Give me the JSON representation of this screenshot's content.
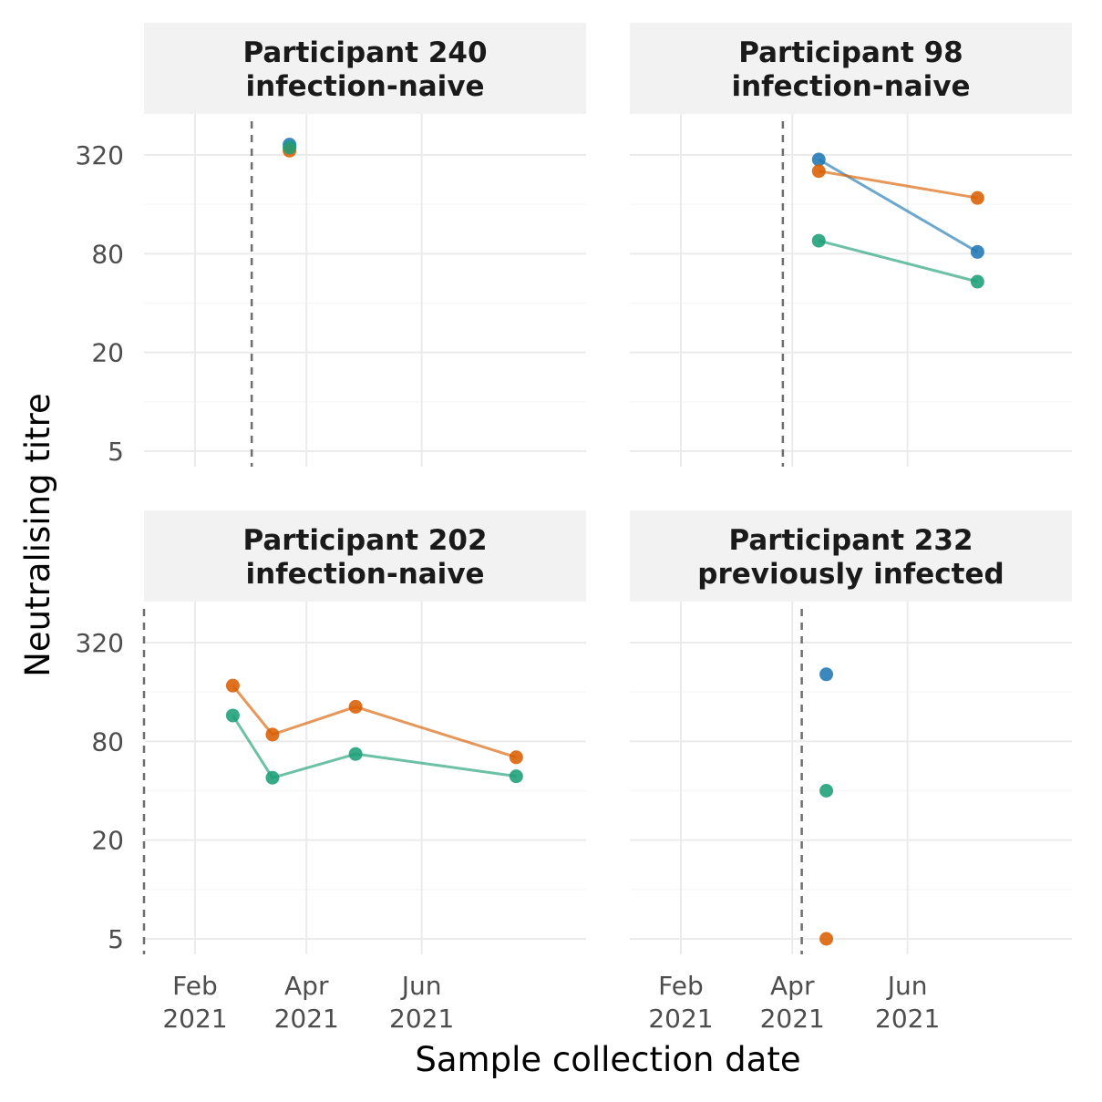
{
  "chart_data": {
    "type": "scatter",
    "xlabel": "Sample collection date",
    "ylabel": "Neutralising titre",
    "y_scale": "log2",
    "ylim": [
      5,
      640
    ],
    "y_ticks": [
      5,
      20,
      80,
      320
    ],
    "x_ticks": [
      {
        "date": "2021-02-01",
        "label_line1": "Feb",
        "label_line2": "2021"
      },
      {
        "date": "2021-04-01",
        "label_line1": "Apr",
        "label_line2": "2021"
      },
      {
        "date": "2021-06-01",
        "label_line1": "Jun",
        "label_line2": "2021"
      }
    ],
    "xlim": [
      "2021-01-05",
      "2021-08-27"
    ],
    "grid": true,
    "legend": "none",
    "series_colors": [
      "#1f78b4",
      "#d95f02",
      "#1b9e77"
    ],
    "panels": [
      {
        "title_line1": "Participant 240",
        "title_line2": "infection-naive",
        "vline_date": "2021-03-03",
        "series": [
          {
            "color": "#1f78b4",
            "points": [
              {
                "x": "2021-03-23",
                "y": 370
              }
            ]
          },
          {
            "color": "#d95f02",
            "points": [
              {
                "x": "2021-03-23",
                "y": 340
              }
            ]
          },
          {
            "color": "#1b9e77",
            "points": [
              {
                "x": "2021-03-23",
                "y": 355
              }
            ]
          }
        ]
      },
      {
        "title_line1": "Participant 98",
        "title_line2": "infection-naive",
        "vline_date": "2021-03-27",
        "series": [
          {
            "color": "#1f78b4",
            "points": [
              {
                "x": "2021-04-15",
                "y": 300
              },
              {
                "x": "2021-07-08",
                "y": 82
              }
            ]
          },
          {
            "color": "#d95f02",
            "points": [
              {
                "x": "2021-04-15",
                "y": 255
              },
              {
                "x": "2021-07-08",
                "y": 175
              }
            ]
          },
          {
            "color": "#1b9e77",
            "points": [
              {
                "x": "2021-04-15",
                "y": 96
              },
              {
                "x": "2021-07-08",
                "y": 54
              }
            ]
          }
        ]
      },
      {
        "title_line1": "Participant 202",
        "title_line2": "infection-naive",
        "vline_date": "2021-01-05",
        "series": [
          {
            "color": "#d95f02",
            "points": [
              {
                "x": "2021-02-21",
                "y": 175
              },
              {
                "x": "2021-03-14",
                "y": 88
              },
              {
                "x": "2021-04-27",
                "y": 130
              },
              {
                "x": "2021-07-21",
                "y": 64
              }
            ]
          },
          {
            "color": "#1b9e77",
            "points": [
              {
                "x": "2021-02-21",
                "y": 115
              },
              {
                "x": "2021-03-14",
                "y": 48
              },
              {
                "x": "2021-04-27",
                "y": 67
              },
              {
                "x": "2021-07-21",
                "y": 49
              }
            ]
          }
        ]
      },
      {
        "title_line1": "Participant 232",
        "title_line2": "previously infected",
        "vline_date": "2021-04-06",
        "series": [
          {
            "color": "#1f78b4",
            "points": [
              {
                "x": "2021-04-19",
                "y": 205
              }
            ]
          },
          {
            "color": "#d95f02",
            "points": [
              {
                "x": "2021-04-19",
                "y": 5
              }
            ]
          },
          {
            "color": "#1b9e77",
            "points": [
              {
                "x": "2021-04-19",
                "y": 40
              }
            ]
          }
        ]
      }
    ]
  }
}
